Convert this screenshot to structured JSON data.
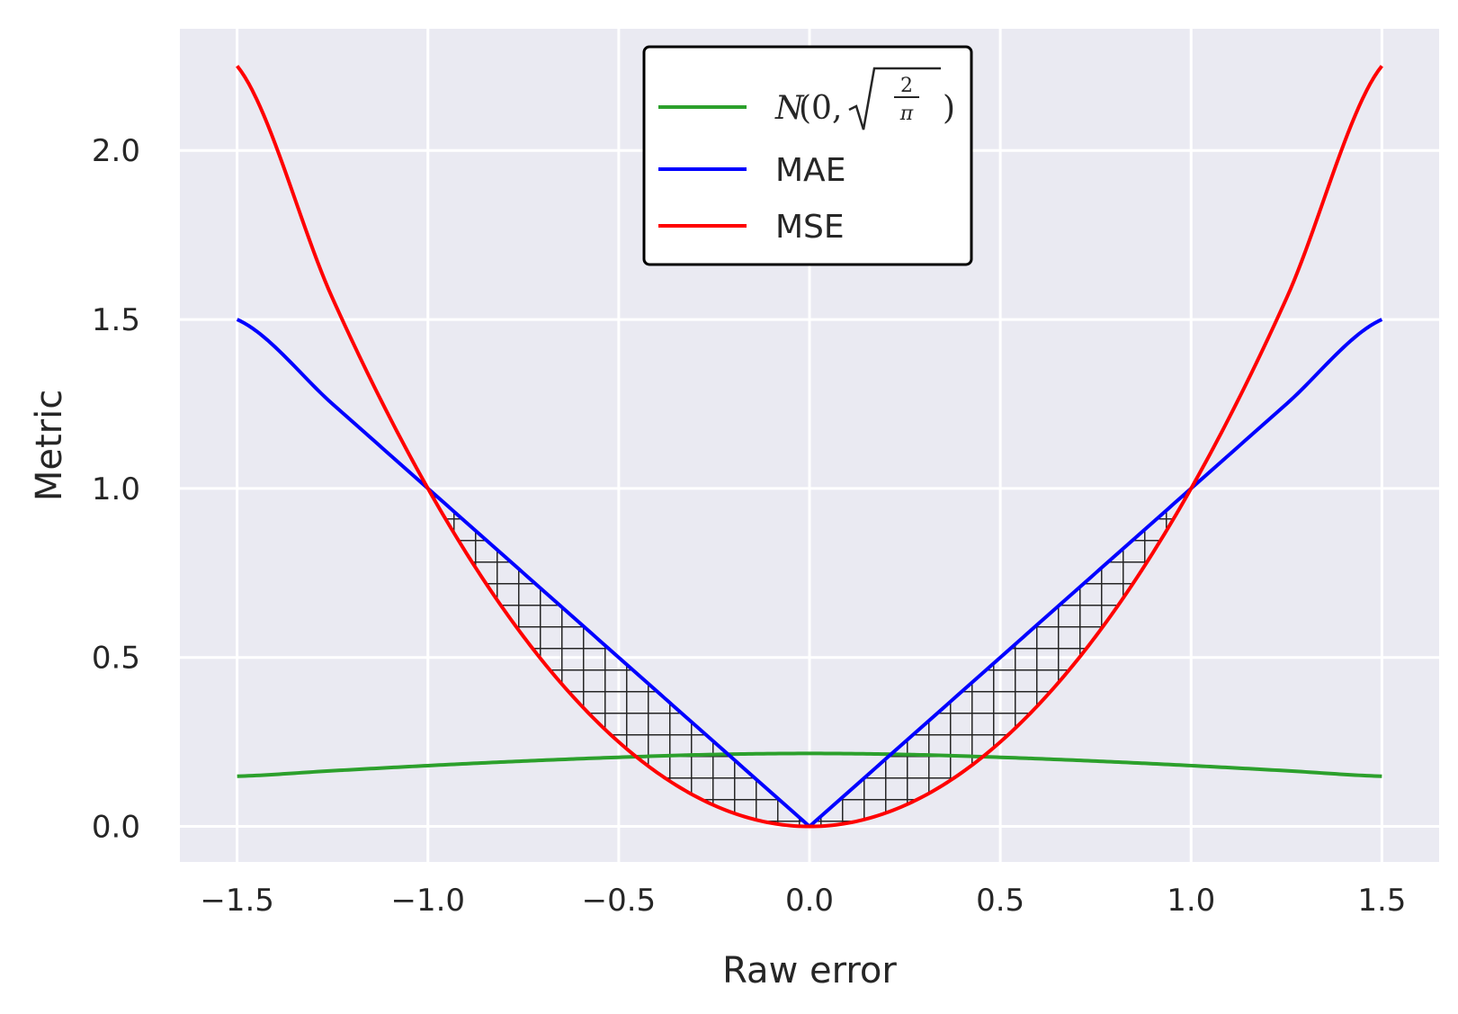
{
  "chart_data": {
    "type": "line",
    "xlabel": "Raw error",
    "ylabel": "Metric",
    "xlim": [
      -1.65,
      1.65
    ],
    "ylim": [
      -0.105,
      2.36
    ],
    "grid": true,
    "background": "#eaeaf2",
    "legend_position": "top-center",
    "xticks": [
      -1.5,
      -1.0,
      -0.5,
      0.0,
      0.5,
      1.0,
      1.5
    ],
    "xtick_labels": [
      "−1.5",
      "−1.0",
      "−0.5",
      "0.0",
      "0.5",
      "1.0",
      "1.5"
    ],
    "yticks": [
      0.0,
      0.5,
      1.0,
      1.5,
      2.0
    ],
    "ytick_labels": [
      "0.0",
      "0.5",
      "1.0",
      "1.5",
      "2.0"
    ],
    "x": [
      -1.5,
      -1.25,
      -1.0,
      -0.75,
      -0.5,
      -0.25,
      0.0,
      0.25,
      0.5,
      0.75,
      1.0,
      1.25,
      1.5
    ],
    "series": [
      {
        "name": "N(0, √(2/π))",
        "color": "#2ca02c",
        "values": [
          0.1486,
          0.1648,
          0.18,
          0.1934,
          0.2046,
          0.2129,
          0.216,
          0.2129,
          0.2046,
          0.1934,
          0.18,
          0.1648,
          0.1486
        ]
      },
      {
        "name": "MAE",
        "color": "#0000ff",
        "values": [
          1.5,
          1.25,
          1.0,
          0.75,
          0.5,
          0.25,
          0.0,
          0.25,
          0.5,
          0.75,
          1.0,
          1.25,
          1.5
        ]
      },
      {
        "name": "MSE",
        "color": "#ff0000",
        "values": [
          2.25,
          1.5625,
          1.0,
          0.5625,
          0.25,
          0.0625,
          0.0,
          0.0625,
          0.25,
          0.5625,
          1.0,
          1.5625,
          2.25
        ]
      }
    ],
    "shaded_region": {
      "between": [
        "MAE",
        "MSE"
      ],
      "x_range": [
        -1.0,
        1.0
      ],
      "pattern": "crosshatch",
      "color": "#262626"
    },
    "legend": {
      "entries": [
        {
          "label_prefix": "N(0, ",
          "label_suffix": ")",
          "sqrt_num": "2",
          "sqrt_den": "π",
          "color": "#2ca02c"
        },
        {
          "label": "MAE",
          "color": "#0000ff"
        },
        {
          "label": "MSE",
          "color": "#ff0000"
        }
      ]
    }
  }
}
